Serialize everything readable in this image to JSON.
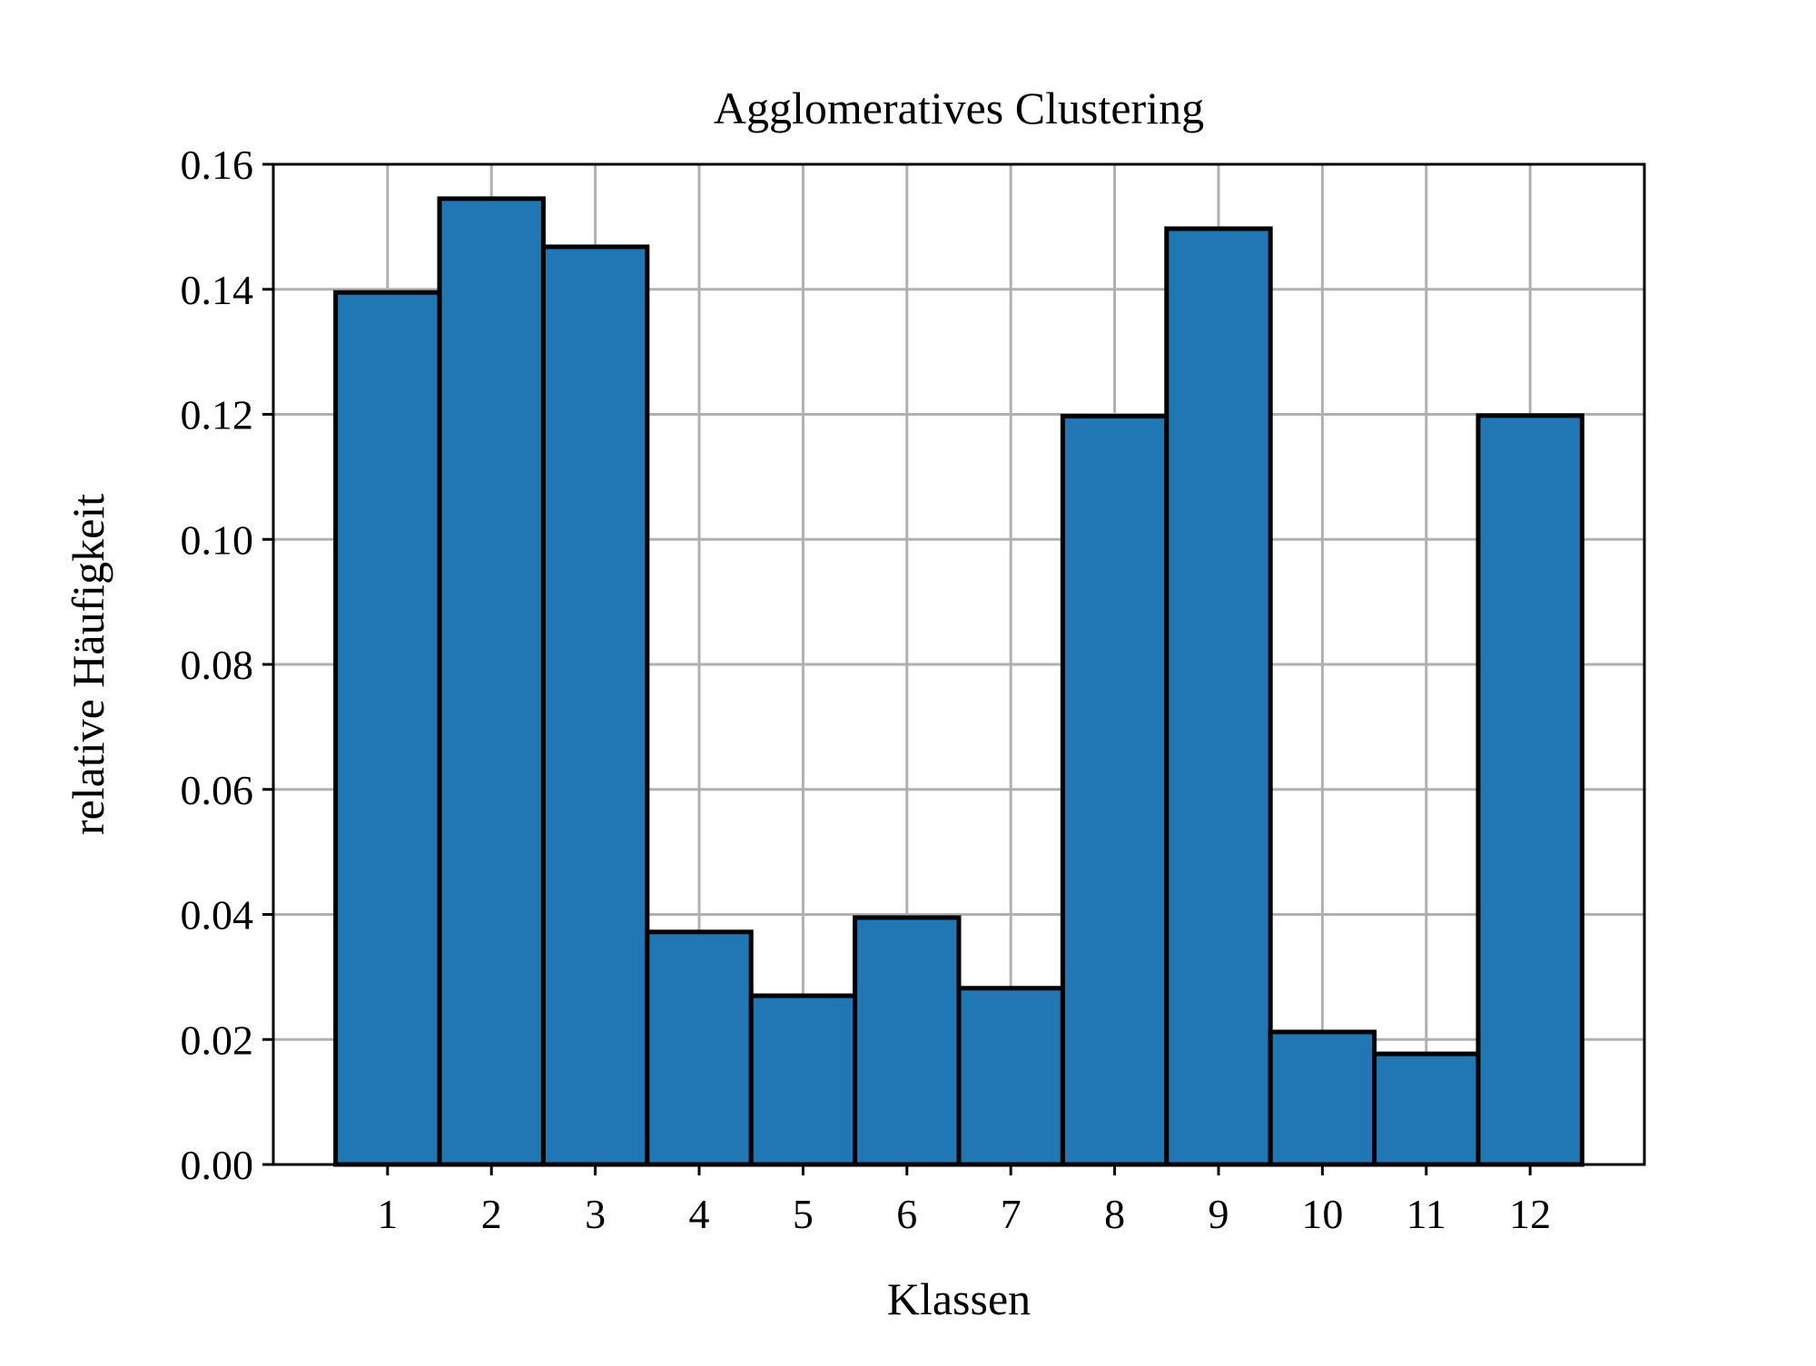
{
  "chart_data": {
    "type": "bar",
    "title": "Agglomeratives Clustering",
    "xlabel": "Klassen",
    "ylabel": "relative Häufigkeit",
    "categories": [
      "1",
      "2",
      "3",
      "4",
      "5",
      "6",
      "7",
      "8",
      "9",
      "10",
      "11",
      "12"
    ],
    "values": [
      0.1395,
      0.1545,
      0.1468,
      0.0372,
      0.027,
      0.0395,
      0.0282,
      0.1197,
      0.1497,
      0.0212,
      0.0177,
      0.1198
    ],
    "ylim": [
      0,
      0.16
    ],
    "xlim": [
      -0.1,
      13.1
    ],
    "yticks": [
      0.0,
      0.02,
      0.04,
      0.06,
      0.08,
      0.1,
      0.12,
      0.14,
      0.16
    ],
    "ytick_labels": [
      "0.00",
      "0.02",
      "0.04",
      "0.06",
      "0.08",
      "0.10",
      "0.12",
      "0.14",
      "0.16"
    ],
    "grid": true,
    "colors": {
      "bar_fill": "#2077b4",
      "bar_edge": "#000000",
      "grid": "#b0b0b0",
      "axes": "#000000"
    }
  }
}
